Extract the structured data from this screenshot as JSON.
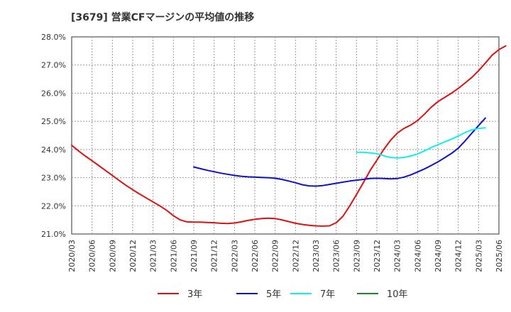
{
  "chart_data": {
    "type": "line",
    "title": "[3679]  営業CFマージンの平均値の推移",
    "xlabel": "",
    "ylabel": "",
    "ylim": [
      21.0,
      28.0
    ],
    "yticks": [
      "21.0%",
      "22.0%",
      "23.0%",
      "24.0%",
      "25.0%",
      "26.0%",
      "27.0%",
      "28.0%"
    ],
    "x_categories": [
      "2020/03",
      "2020/06",
      "2020/09",
      "2020/12",
      "2021/03",
      "2021/06",
      "2021/09",
      "2021/12",
      "2022/03",
      "2022/06",
      "2022/09",
      "2022/12",
      "2023/03",
      "2023/06",
      "2023/09",
      "2023/12",
      "2024/03",
      "2024/06",
      "2024/09",
      "2024/12",
      "2025/03",
      "2025/06"
    ],
    "grid": true,
    "legend_position": "bottom",
    "series": [
      {
        "name": "3年",
        "color": "#dd1111",
        "points": [
          [
            "2020/03",
            24.15
          ],
          [
            "2020/04",
            23.95
          ],
          [
            "2020/05",
            23.77
          ],
          [
            "2020/06",
            23.6
          ],
          [
            "2020/07",
            23.43
          ],
          [
            "2020/08",
            23.25
          ],
          [
            "2020/09",
            23.08
          ],
          [
            "2020/10",
            22.9
          ],
          [
            "2020/11",
            22.73
          ],
          [
            "2020/12",
            22.57
          ],
          [
            "2021/01",
            22.42
          ],
          [
            "2021/02",
            22.28
          ],
          [
            "2021/03",
            22.14
          ],
          [
            "2021/04",
            22.0
          ],
          [
            "2021/05",
            21.84
          ],
          [
            "2021/06",
            21.65
          ],
          [
            "2021/07",
            21.5
          ],
          [
            "2021/08",
            21.43
          ],
          [
            "2021/09",
            21.42
          ],
          [
            "2021/10",
            21.42
          ],
          [
            "2021/11",
            21.41
          ],
          [
            "2021/12",
            21.4
          ],
          [
            "2022/01",
            21.38
          ],
          [
            "2022/02",
            21.37
          ],
          [
            "2022/03",
            21.39
          ],
          [
            "2022/04",
            21.43
          ],
          [
            "2022/05",
            21.48
          ],
          [
            "2022/06",
            21.52
          ],
          [
            "2022/07",
            21.55
          ],
          [
            "2022/08",
            21.56
          ],
          [
            "2022/09",
            21.55
          ],
          [
            "2022/10",
            21.5
          ],
          [
            "2022/11",
            21.44
          ],
          [
            "2022/12",
            21.38
          ],
          [
            "2023/01",
            21.34
          ],
          [
            "2023/02",
            21.31
          ],
          [
            "2023/03",
            21.29
          ],
          [
            "2023/04",
            21.28
          ],
          [
            "2023/05",
            21.29
          ],
          [
            "2023/06",
            21.4
          ],
          [
            "2023/07",
            21.63
          ],
          [
            "2023/08",
            22.0
          ],
          [
            "2023/09",
            22.4
          ],
          [
            "2023/10",
            22.82
          ],
          [
            "2023/11",
            23.25
          ],
          [
            "2023/12",
            23.62
          ],
          [
            "2024/01",
            24.0
          ],
          [
            "2024/02",
            24.32
          ],
          [
            "2024/03",
            24.58
          ],
          [
            "2024/04",
            24.75
          ],
          [
            "2024/05",
            24.87
          ],
          [
            "2024/06",
            25.03
          ],
          [
            "2024/07",
            25.25
          ],
          [
            "2024/08",
            25.5
          ],
          [
            "2024/09",
            25.7
          ],
          [
            "2024/10",
            25.85
          ],
          [
            "2024/11",
            26.0
          ],
          [
            "2024/12",
            26.17
          ],
          [
            "2025/01",
            26.36
          ],
          [
            "2025/02",
            26.56
          ],
          [
            "2025/03",
            26.8
          ],
          [
            "2025/04",
            27.07
          ],
          [
            "2025/05",
            27.35
          ],
          [
            "2025/06",
            27.55
          ],
          [
            "2025/07",
            27.68
          ]
        ]
      },
      {
        "name": "5年",
        "color": "#1111cc",
        "points": [
          [
            "2021/09",
            23.38
          ],
          [
            "2021/10",
            23.32
          ],
          [
            "2021/11",
            23.26
          ],
          [
            "2021/12",
            23.21
          ],
          [
            "2022/01",
            23.16
          ],
          [
            "2022/02",
            23.12
          ],
          [
            "2022/03",
            23.08
          ],
          [
            "2022/04",
            23.05
          ],
          [
            "2022/05",
            23.03
          ],
          [
            "2022/06",
            23.02
          ],
          [
            "2022/07",
            23.01
          ],
          [
            "2022/08",
            23.0
          ],
          [
            "2022/09",
            22.98
          ],
          [
            "2022/10",
            22.94
          ],
          [
            "2022/11",
            22.88
          ],
          [
            "2022/12",
            22.82
          ],
          [
            "2023/01",
            22.75
          ],
          [
            "2023/02",
            22.71
          ],
          [
            "2023/03",
            22.7
          ],
          [
            "2023/04",
            22.72
          ],
          [
            "2023/05",
            22.76
          ],
          [
            "2023/06",
            22.8
          ],
          [
            "2023/07",
            22.84
          ],
          [
            "2023/08",
            22.88
          ],
          [
            "2023/09",
            22.91
          ],
          [
            "2023/10",
            22.94
          ],
          [
            "2023/11",
            22.97
          ],
          [
            "2023/12",
            22.98
          ],
          [
            "2024/01",
            22.97
          ],
          [
            "2024/02",
            22.96
          ],
          [
            "2024/03",
            22.97
          ],
          [
            "2024/04",
            23.02
          ],
          [
            "2024/05",
            23.1
          ],
          [
            "2024/06",
            23.2
          ],
          [
            "2024/07",
            23.31
          ],
          [
            "2024/08",
            23.43
          ],
          [
            "2024/09",
            23.56
          ],
          [
            "2024/10",
            23.71
          ],
          [
            "2024/11",
            23.86
          ],
          [
            "2024/12",
            24.05
          ],
          [
            "2025/01",
            24.3
          ],
          [
            "2025/02",
            24.58
          ],
          [
            "2025/03",
            24.85
          ],
          [
            "2025/04",
            25.12
          ]
        ]
      },
      {
        "name": "7年",
        "color": "#11eeee",
        "points": [
          [
            "2023/09",
            23.9
          ],
          [
            "2023/10",
            23.9
          ],
          [
            "2023/11",
            23.88
          ],
          [
            "2023/12",
            23.85
          ],
          [
            "2024/01",
            23.78
          ],
          [
            "2024/02",
            23.72
          ],
          [
            "2024/03",
            23.7
          ],
          [
            "2024/04",
            23.72
          ],
          [
            "2024/05",
            23.77
          ],
          [
            "2024/06",
            23.84
          ],
          [
            "2024/07",
            23.95
          ],
          [
            "2024/08",
            24.07
          ],
          [
            "2024/09",
            24.17
          ],
          [
            "2024/10",
            24.27
          ],
          [
            "2024/11",
            24.37
          ],
          [
            "2024/12",
            24.48
          ],
          [
            "2025/01",
            24.6
          ],
          [
            "2025/02",
            24.7
          ],
          [
            "2025/03",
            24.75
          ],
          [
            "2025/04",
            24.77
          ]
        ]
      },
      {
        "name": "10年",
        "color": "#228822",
        "points": []
      }
    ]
  }
}
